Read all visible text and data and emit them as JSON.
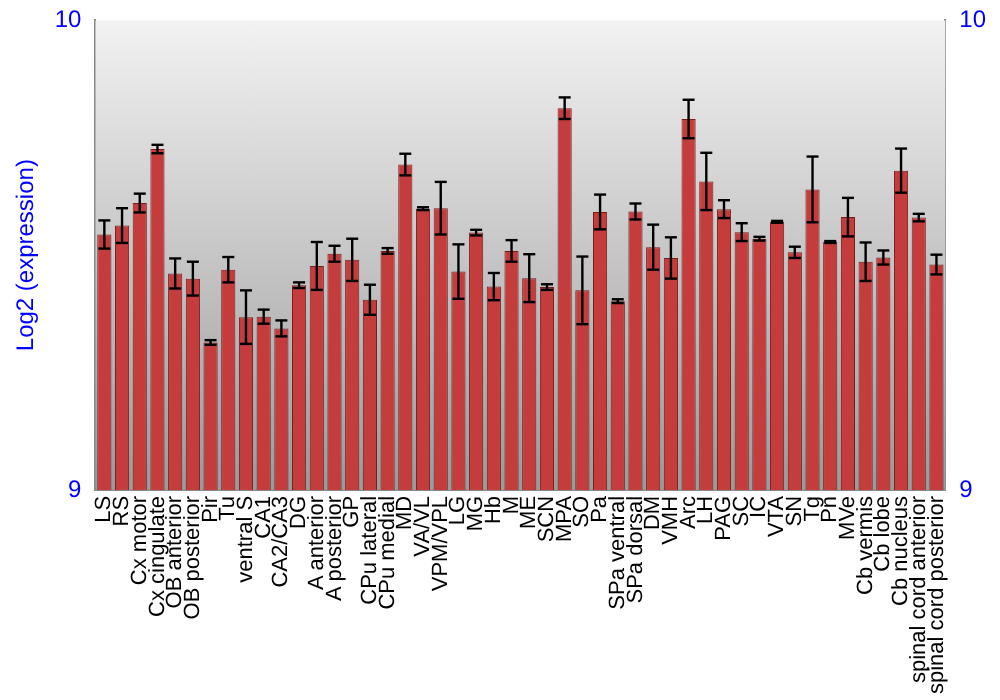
{
  "chart_data": {
    "type": "bar",
    "ylabel": "Log2 (expression)",
    "categories": [
      "LS",
      "RS",
      "Cx motor",
      "Cx cingulate",
      "OB anterior",
      "OB posterior",
      "Pir",
      "Tu",
      "ventral S",
      "CA1",
      "CA2/CA3",
      "DG",
      "A anterior",
      "A posterior",
      "GP",
      "CPu lateral",
      "CPu medial",
      "MD",
      "VA/VL",
      "VPM/VPL",
      "LG",
      "MG",
      "Hb",
      "M",
      "ME",
      "SCN",
      "MPA",
      "SO",
      "Pa",
      "SPa ventral",
      "SPa dorsal",
      "DM",
      "VMH",
      "Arc",
      "LH",
      "PAG",
      "SC",
      "IC",
      "VTA",
      "SN",
      "Tg",
      "Pn",
      "MVe",
      "Cb vermis",
      "Cb lobe",
      "Cb nucleus",
      "spinal cord anterior",
      "spinal cord posterior"
    ],
    "values": [
      9.544,
      9.563,
      9.611,
      9.726,
      9.461,
      9.45,
      9.314,
      9.469,
      9.368,
      9.369,
      9.344,
      9.436,
      9.477,
      9.503,
      9.49,
      9.405,
      9.509,
      9.693,
      9.599,
      9.6,
      9.465,
      9.548,
      9.433,
      9.509,
      9.451,
      9.432,
      9.813,
      9.425,
      9.592,
      9.402,
      9.593,
      9.517,
      9.494,
      9.79,
      9.657,
      9.598,
      9.549,
      9.535,
      9.571,
      9.506,
      9.64,
      9.528,
      9.581,
      9.486,
      9.495,
      9.68,
      9.58,
      9.48
    ],
    "errors": [
      0.03,
      0.037,
      0.02,
      0.009,
      0.032,
      0.036,
      0.005,
      0.027,
      0.057,
      0.015,
      0.017,
      0.006,
      0.051,
      0.017,
      0.045,
      0.032,
      0.006,
      0.023,
      0.003,
      0.056,
      0.058,
      0.006,
      0.029,
      0.023,
      0.051,
      0.006,
      0.023,
      0.072,
      0.037,
      0.004,
      0.017,
      0.048,
      0.044,
      0.041,
      0.061,
      0.019,
      0.019,
      0.004,
      0.002,
      0.012,
      0.07,
      0.002,
      0.041,
      0.041,
      0.015,
      0.047,
      0.008,
      0.021
    ],
    "color": "#c43c3c",
    "ylim": [
      9,
      10
    ],
    "yticks": [
      9,
      10
    ],
    "y2lim": [
      9,
      10
    ],
    "y2ticks": [
      9,
      10
    ],
    "grid": false,
    "legend": false
  }
}
